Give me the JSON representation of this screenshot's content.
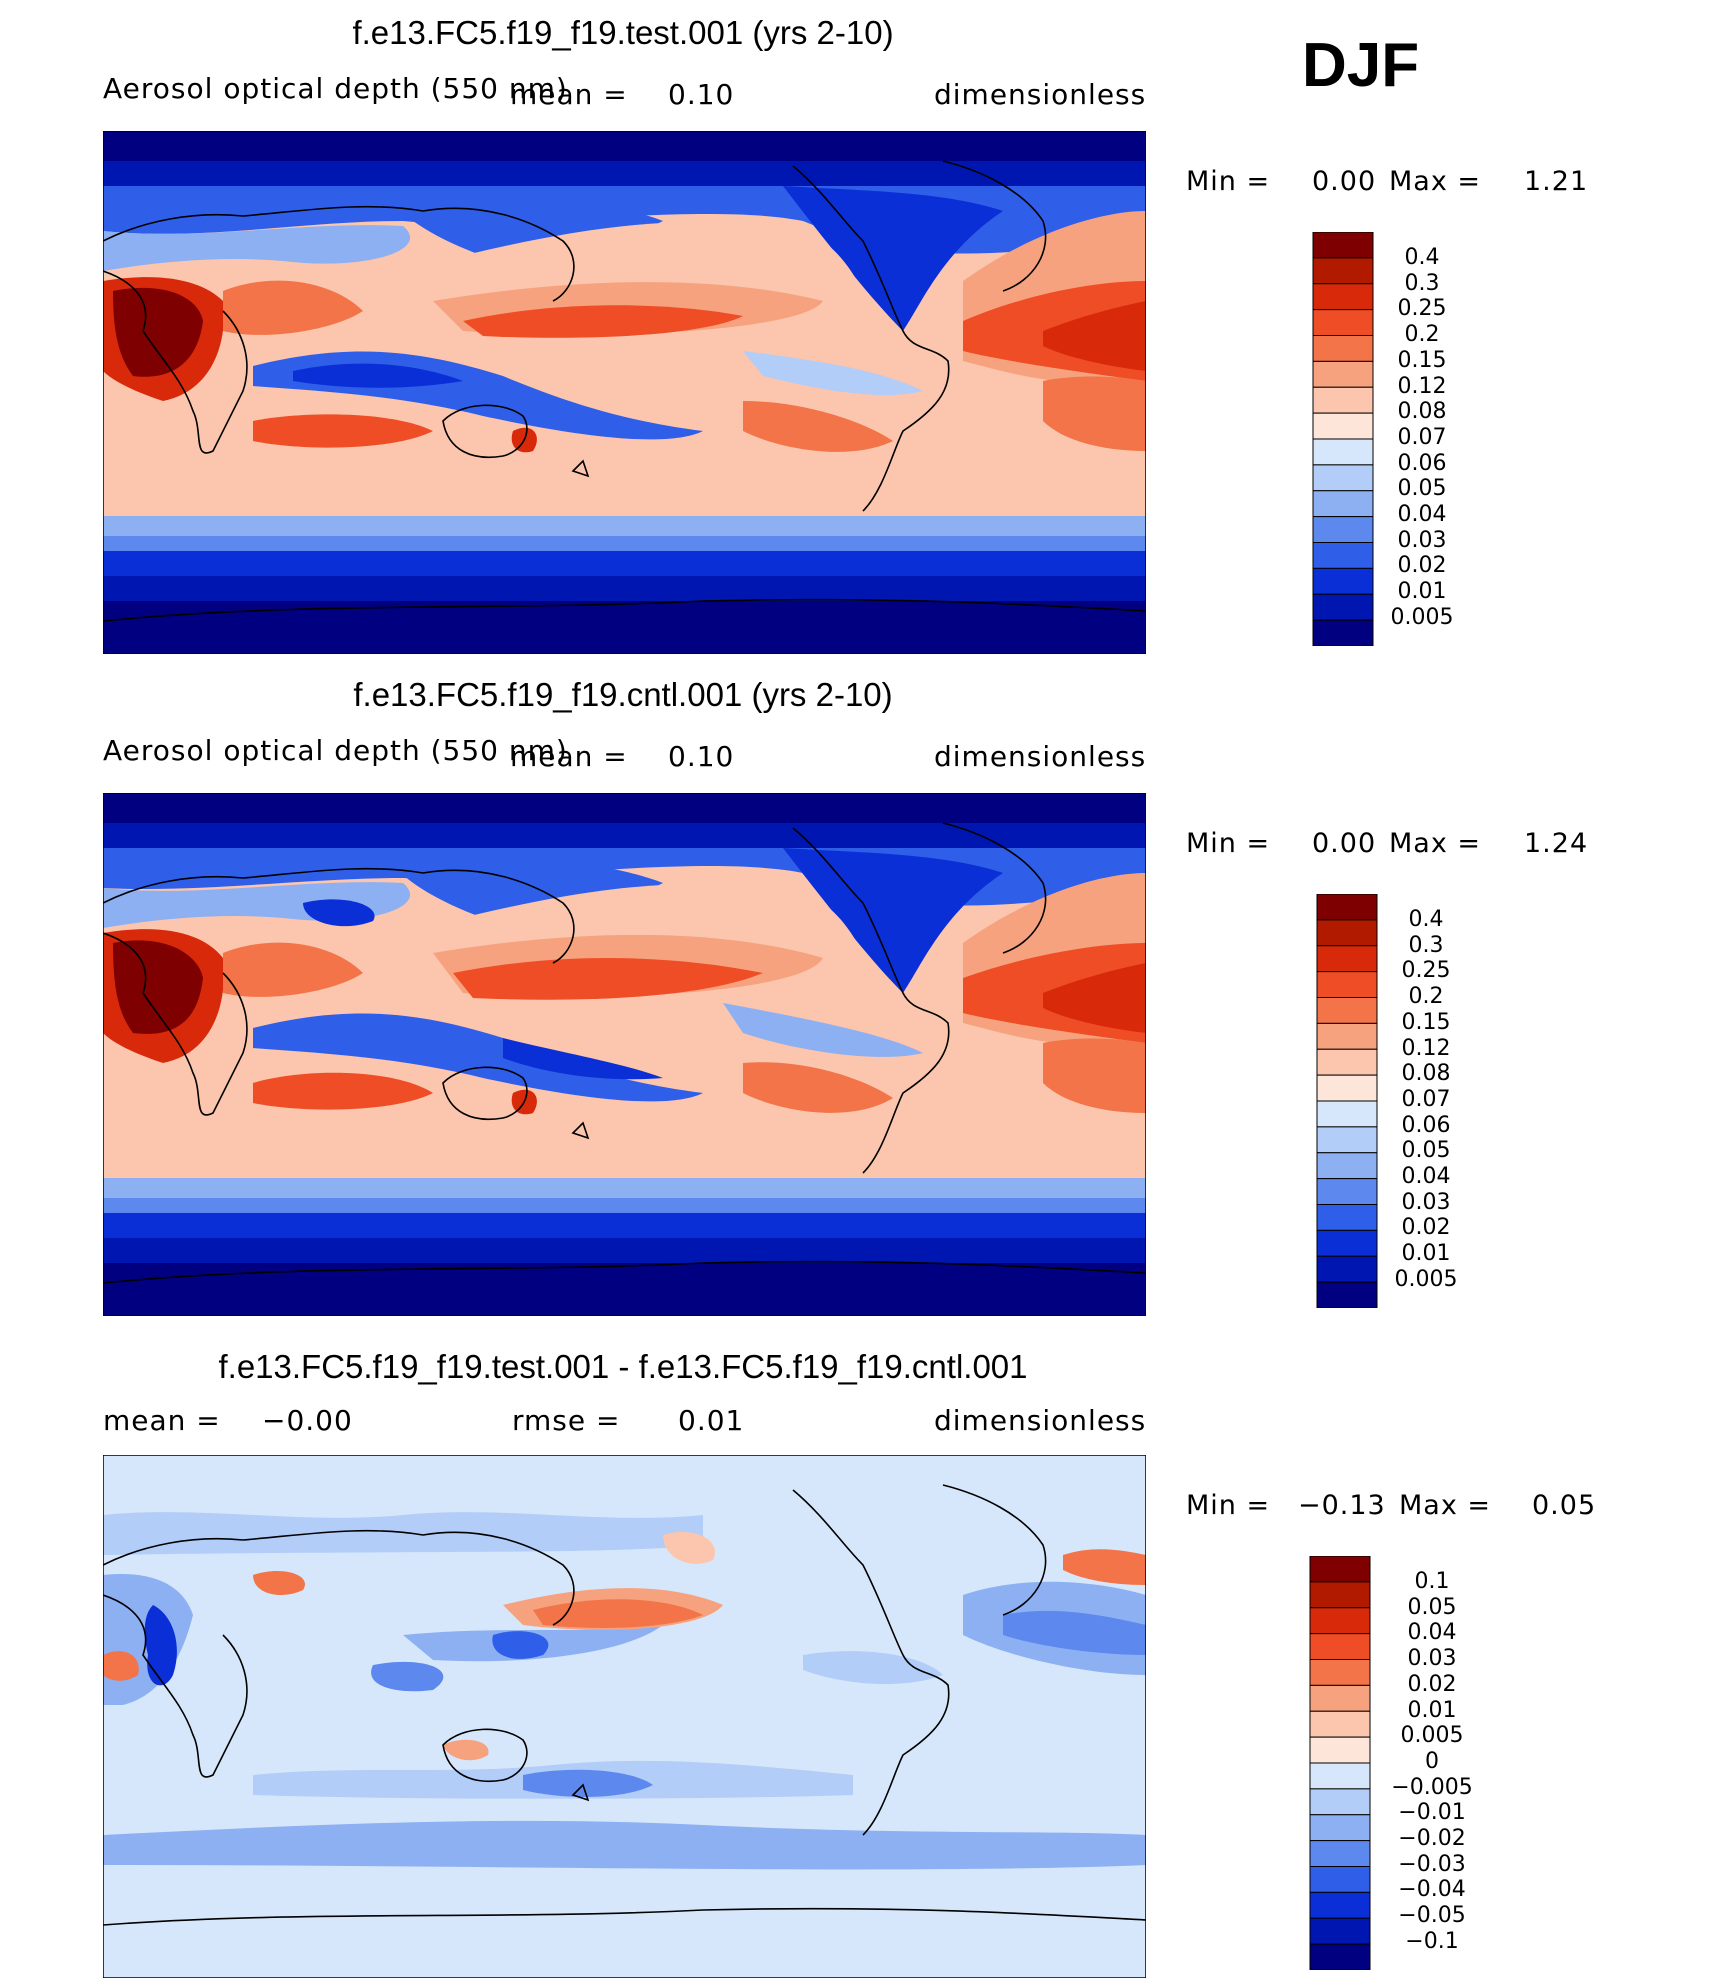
{
  "season": "DJF",
  "panels": [
    {
      "id": "test",
      "title": "f.e13.FC5.f19_f19.test.001 (yrs 2-10)",
      "variable": "Aerosol optical depth (550 nm)",
      "stat1_label": "mean =",
      "stat1_value": "0.10",
      "stat2_label": "",
      "stat2_value": "",
      "units": "dimensionless",
      "min_label": "Min =",
      "min_value": "0.00",
      "max_label": "Max =",
      "max_value": "1.21",
      "colorbar": {
        "levels": [
          "0.4",
          "0.3",
          "0.25",
          "0.2",
          "0.15",
          "0.12",
          "0.08",
          "0.07",
          "0.06",
          "0.05",
          "0.04",
          "0.03",
          "0.02",
          "0.01",
          "0.005"
        ],
        "colors": [
          "#7f0000",
          "#b21a00",
          "#d82a0b",
          "#ee4d26",
          "#f27448",
          "#f6a27e",
          "#fbc6ad",
          "#fde6d9",
          "#d7e7fb",
          "#b2cdf7",
          "#8db0f3",
          "#5d89ee",
          "#2f5ee8",
          "#0a2fd6",
          "#0016b0",
          "#000080"
        ]
      }
    },
    {
      "id": "cntl",
      "title": "f.e13.FC5.f19_f19.cntl.001 (yrs 2-10)",
      "variable": "Aerosol optical depth (550 nm)",
      "stat1_label": "mean =",
      "stat1_value": "0.10",
      "stat2_label": "",
      "stat2_value": "",
      "units": "dimensionless",
      "min_label": "Min =",
      "min_value": "0.00",
      "max_label": "Max =",
      "max_value": "1.24",
      "colorbar": {
        "levels": [
          "0.4",
          "0.3",
          "0.25",
          "0.2",
          "0.15",
          "0.12",
          "0.08",
          "0.07",
          "0.06",
          "0.05",
          "0.04",
          "0.03",
          "0.02",
          "0.01",
          "0.005"
        ],
        "colors": [
          "#7f0000",
          "#b21a00",
          "#d82a0b",
          "#ee4d26",
          "#f27448",
          "#f6a27e",
          "#fbc6ad",
          "#fde6d9",
          "#d7e7fb",
          "#b2cdf7",
          "#8db0f3",
          "#5d89ee",
          "#2f5ee8",
          "#0a2fd6",
          "#0016b0",
          "#000080"
        ]
      }
    },
    {
      "id": "diff",
      "title": "f.e13.FC5.f19_f19.test.001 - f.e13.FC5.f19_f19.cntl.001",
      "variable": "",
      "stat1_label": "mean =",
      "stat1_value": "−0.00",
      "stat2_label": "rmse =",
      "stat2_value": "0.01",
      "units": "dimensionless",
      "min_label": "Min =",
      "min_value": "−0.13",
      "max_label": "Max =",
      "max_value": "0.05",
      "colorbar": {
        "levels": [
          "0.1",
          "0.05",
          "0.04",
          "0.03",
          "0.02",
          "0.01",
          "0.005",
          "0",
          "−0.005",
          "−0.01",
          "−0.02",
          "−0.03",
          "−0.04",
          "−0.05",
          "−0.1"
        ],
        "colors": [
          "#7f0000",
          "#b21a00",
          "#d82a0b",
          "#ee4d26",
          "#f27448",
          "#f6a27e",
          "#fbc6ad",
          "#fde6d9",
          "#d7e7fb",
          "#b2cdf7",
          "#8db0f3",
          "#5d89ee",
          "#2f5ee8",
          "#0a2fd6",
          "#0016b0",
          "#000080"
        ]
      }
    }
  ],
  "chart_data": {
    "type": "heatmap",
    "description_level": "global lat-lon filled contour maps, centred on the Pacific",
    "season": "DJF",
    "maps": [
      {
        "name": "f.e13.FC5.f19_f19.test.001 (yrs 2-10)",
        "mean": 0.1,
        "min": 0.0,
        "max": 1.21,
        "contour_levels": [
          0.005,
          0.01,
          0.02,
          0.03,
          0.04,
          0.05,
          0.06,
          0.07,
          0.08,
          0.12,
          0.15,
          0.2,
          0.25,
          0.3,
          0.4
        ]
      },
      {
        "name": "f.e13.FC5.f19_f19.cntl.001 (yrs 2-10)",
        "mean": 0.1,
        "min": 0.0,
        "max": 1.24,
        "contour_levels": [
          0.005,
          0.01,
          0.02,
          0.03,
          0.04,
          0.05,
          0.06,
          0.07,
          0.08,
          0.12,
          0.15,
          0.2,
          0.25,
          0.3,
          0.4
        ]
      },
      {
        "name": "f.e13.FC5.f19_f19.test.001 - f.e13.FC5.f19_f19.cntl.001",
        "mean": -0.0,
        "rmse": 0.01,
        "min": -0.13,
        "max": 0.05,
        "contour_levels": [
          -0.1,
          -0.05,
          -0.04,
          -0.03,
          -0.02,
          -0.01,
          -0.005,
          0,
          0.005,
          0.01,
          0.02,
          0.03,
          0.04,
          0.05,
          0.1
        ]
      }
    ]
  }
}
